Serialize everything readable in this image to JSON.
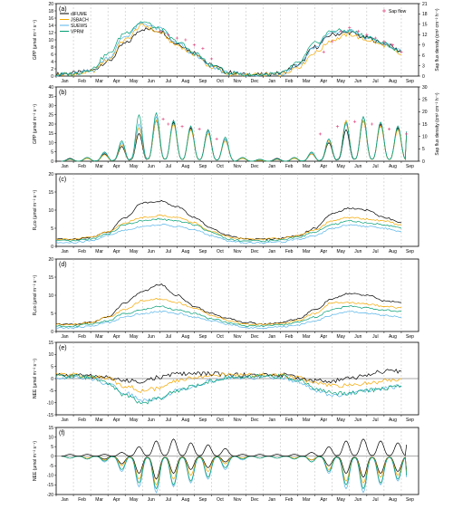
{
  "colors": {
    "diFUME": "#000000",
    "JSBACH": "#f5a800",
    "SUEWS": "#56b4e9",
    "VPRM": "#009e73",
    "sapflow": "#e0407a",
    "grid": "#b8b8b8",
    "zero": "#555555"
  },
  "legend": {
    "series": [
      "diFUME",
      "JSBACH",
      "SUEWS",
      "VPRM"
    ],
    "sapflow": "Sap flow"
  },
  "months": [
    "Jan",
    "Feb",
    "Mar",
    "Apr",
    "May",
    "Jun",
    "Jul",
    "Aug",
    "Sep",
    "Oct",
    "Nov",
    "Dec",
    "Jan",
    "Feb",
    "Mar",
    "Apr",
    "May",
    "Jun",
    "Jul",
    "Aug",
    "Sep"
  ],
  "chart_data": [
    {
      "panel": "(a)",
      "type": "line",
      "ylabel": "GPP (µmol m⁻² s⁻¹)",
      "ylim": [
        0,
        20
      ],
      "yticks": [
        0,
        2,
        4,
        6,
        8,
        10,
        12,
        14,
        16,
        18,
        20
      ],
      "y2label": "Sap flux density (cm³ cm⁻² h⁻¹)",
      "y2lim": [
        0,
        21
      ],
      "y2ticks": [
        0,
        3,
        6,
        9,
        12,
        15,
        18,
        21
      ],
      "x": [
        0,
        1,
        2,
        3,
        4,
        5,
        6,
        7,
        8,
        9,
        10,
        11,
        12,
        13,
        14,
        15,
        16,
        17,
        18,
        19,
        20
      ],
      "series": [
        {
          "name": "diFUME",
          "values": [
            0.5,
            0.8,
            1.5,
            4,
            9,
            13,
            12.5,
            9,
            6.5,
            3,
            1,
            0.4,
            0.4,
            0.8,
            3,
            8,
            11.5,
            12,
            10.5,
            9,
            7
          ]
        },
        {
          "name": "JSBACH",
          "values": [
            0.3,
            0.5,
            1.2,
            4.5,
            10,
            14,
            12,
            8.5,
            6,
            2.5,
            0.6,
            0.2,
            0.3,
            0.5,
            2.5,
            6.5,
            10,
            11.5,
            10,
            8.5,
            6
          ]
        },
        {
          "name": "SUEWS",
          "values": [
            0.4,
            0.6,
            1.4,
            5,
            11,
            14.5,
            13,
            9,
            6,
            2.5,
            0.8,
            0.3,
            0.3,
            0.6,
            3,
            8,
            12,
            12.5,
            10.5,
            9,
            7
          ]
        },
        {
          "name": "VPRM",
          "values": [
            0.4,
            0.6,
            1.8,
            6,
            12,
            15,
            13,
            9.5,
            6.5,
            3,
            1,
            0.3,
            0.4,
            0.7,
            3.5,
            9,
            12.5,
            12.5,
            11,
            9,
            6.5
          ]
        }
      ],
      "sapflow": {
        "x": [
          6,
          6.5,
          7,
          7.5,
          8,
          8.5,
          9,
          15.5,
          16,
          16.5,
          17,
          17.5,
          18,
          18.5,
          19,
          19.5,
          20
        ],
        "values": [
          13,
          12,
          11,
          10.5,
          9,
          8,
          5,
          7,
          10,
          13,
          14,
          13,
          12,
          11,
          10,
          9,
          7
        ]
      }
    },
    {
      "panel": "(b)",
      "type": "line",
      "ylabel": "GPP (µmol m⁻² s⁻¹)",
      "ylim": [
        0,
        40
      ],
      "yticks": [
        0,
        5,
        10,
        15,
        20,
        25,
        30,
        35,
        40
      ],
      "y2label": "Sap flux density (cm³ cm⁻² h⁻¹)",
      "y2lim": [
        0,
        30
      ],
      "y2ticks": [
        0,
        5,
        10,
        15,
        20,
        25,
        30
      ],
      "x": [
        0.3,
        1.3,
        2.3,
        3.3,
        4.3,
        5.3,
        6.3,
        7.3,
        8.3,
        9.3,
        10.3,
        11.3,
        12.3,
        13.3,
        14.3,
        15.3,
        16.3,
        17.3,
        18.3,
        19.3,
        20.3
      ],
      "series": [
        {
          "name": "diFUME",
          "values": [
            1.5,
            2,
            4,
            8,
            15,
            22,
            21,
            18,
            17,
            12,
            2,
            1,
            1.5,
            2,
            4,
            10,
            17,
            22,
            20,
            18,
            15
          ]
        },
        {
          "name": "JSBACH",
          "values": [
            1,
            1.5,
            3.5,
            9,
            18,
            22,
            20,
            17,
            15,
            11,
            1.5,
            0.5,
            1,
            1.5,
            4,
            11,
            22,
            22,
            19,
            17,
            14
          ]
        },
        {
          "name": "SUEWS",
          "values": [
            1.2,
            2,
            4.5,
            10,
            20,
            24,
            22,
            19,
            16,
            12,
            2,
            1,
            1.2,
            2,
            4.5,
            12,
            20,
            24,
            21,
            19,
            16
          ]
        },
        {
          "name": "VPRM",
          "values": [
            1.2,
            2,
            5,
            11,
            25,
            26,
            22,
            19,
            17,
            13,
            2,
            1,
            1.2,
            2,
            5,
            12,
            21,
            24,
            21,
            19,
            16
          ]
        }
      ],
      "sapflow": {
        "x": [
          6.2,
          6.5,
          7.3,
          8.3,
          9.3,
          15.3,
          16.3,
          17.3,
          18.3,
          19.3,
          20.3
        ],
        "values": [
          17,
          15,
          14,
          13,
          9,
          11,
          14,
          16,
          15,
          13,
          11
        ]
      }
    },
    {
      "panel": "(c)",
      "type": "line",
      "ylabel": "Rₑco (µmol m⁻² s⁻¹)",
      "ylim": [
        0,
        20
      ],
      "yticks": [
        0,
        5,
        10,
        15,
        20
      ],
      "x": [
        0,
        1,
        2,
        3,
        4,
        5,
        6,
        7,
        8,
        9,
        10,
        11,
        12,
        13,
        14,
        15,
        16,
        17,
        18,
        19,
        20
      ],
      "series": [
        {
          "name": "diFUME",
          "values": [
            2,
            2,
            2.5,
            4,
            8,
            12,
            12.5,
            11,
            8,
            5,
            3,
            2,
            2,
            2.2,
            3,
            5,
            9,
            10.5,
            10,
            8,
            6.5
          ]
        },
        {
          "name": "JSBACH",
          "values": [
            2,
            2,
            2.5,
            4,
            6.5,
            8,
            8.5,
            8,
            6.5,
            4,
            2.5,
            2,
            2,
            2.2,
            3,
            4.5,
            7,
            8,
            7.5,
            7,
            6
          ]
        },
        {
          "name": "SUEWS",
          "values": [
            1,
            1,
            1.5,
            3,
            4.5,
            5.5,
            6,
            5.5,
            4.5,
            3,
            1.5,
            1,
            1,
            1.2,
            2,
            3,
            5,
            6,
            5.5,
            5,
            4
          ]
        },
        {
          "name": "VPRM",
          "values": [
            1.5,
            1.5,
            2,
            3.5,
            6,
            7,
            7.5,
            7,
            6,
            4,
            2,
            1.5,
            1.5,
            1.7,
            2.5,
            4,
            6,
            7,
            6.5,
            6,
            5
          ]
        }
      ]
    },
    {
      "panel": "(d)",
      "type": "line",
      "ylabel": "Rₑco (µmol m⁻² s⁻¹)",
      "ylim": [
        0,
        20
      ],
      "yticks": [
        0,
        5,
        10,
        15,
        20
      ],
      "x": [
        0,
        1,
        2,
        3,
        4,
        5,
        6,
        7,
        8,
        9,
        10,
        11,
        12,
        13,
        14,
        15,
        16,
        17,
        18,
        19,
        20
      ],
      "series": [
        {
          "name": "diFUME",
          "values": [
            2,
            2,
            2.5,
            4,
            8,
            11,
            13,
            10,
            7,
            5,
            3.5,
            2.5,
            2,
            2.5,
            3.5,
            6,
            9,
            10.5,
            10,
            8.5,
            8
          ]
        },
        {
          "name": "JSBACH",
          "values": [
            2,
            2,
            2.5,
            4,
            6,
            8.5,
            9,
            8,
            6.5,
            4.5,
            3,
            2,
            2,
            2.2,
            3,
            5,
            8,
            8,
            7.5,
            7,
            6.5
          ]
        },
        {
          "name": "SUEWS",
          "values": [
            1,
            1,
            1.5,
            2.5,
            4,
            5,
            5.5,
            5,
            4,
            3,
            2,
            1,
            1,
            1.2,
            1.8,
            3,
            4.5,
            5.5,
            5,
            4.5,
            4
          ]
        },
        {
          "name": "VPRM",
          "values": [
            1.5,
            1.5,
            2,
            3,
            5,
            6,
            7,
            6,
            5,
            3.5,
            2.5,
            1.5,
            1.5,
            1.8,
            2.5,
            4,
            6,
            7,
            6.5,
            6,
            5.5
          ]
        }
      ]
    },
    {
      "panel": "(e)",
      "type": "line",
      "ylabel": "NEE (µmol m⁻² s⁻¹)",
      "ylim": [
        -15,
        15
      ],
      "yticks": [
        -15,
        -10,
        -5,
        0,
        5,
        10,
        15
      ],
      "x": [
        0,
        1,
        2,
        3,
        4,
        5,
        6,
        7,
        8,
        9,
        10,
        11,
        12,
        13,
        14,
        15,
        16,
        17,
        18,
        19,
        20
      ],
      "series": [
        {
          "name": "diFUME",
          "values": [
            1.5,
            1.5,
            1,
            0.5,
            -1,
            -1,
            0.5,
            2,
            2,
            2,
            1.5,
            1.5,
            1.5,
            1.5,
            0.5,
            -1,
            -1,
            0,
            1.5,
            3,
            3
          ]
        },
        {
          "name": "JSBACH",
          "values": [
            1.5,
            1.5,
            1,
            0,
            -3,
            -5,
            -4,
            -1,
            0.5,
            1.5,
            1.5,
            1.5,
            1.5,
            1.5,
            0.5,
            -2,
            -3,
            -3,
            -2,
            -1,
            0
          ]
        },
        {
          "name": "SUEWS",
          "values": [
            0.5,
            0.5,
            0,
            -2,
            -6,
            -9,
            -8,
            -5,
            -3,
            -1,
            0.5,
            0.5,
            0.5,
            0.5,
            -1,
            -5,
            -7,
            -6,
            -5,
            -4,
            -3
          ]
        },
        {
          "name": "VPRM",
          "values": [
            1,
            1,
            0.5,
            -2,
            -7,
            -10,
            -8,
            -5,
            -3,
            -1,
            0.5,
            0.5,
            1,
            1,
            -0.5,
            -4,
            -6,
            -6,
            -5,
            -4,
            -3
          ]
        }
      ]
    },
    {
      "panel": "(f)",
      "type": "line",
      "ylabel": "NEE (µmol m⁻² s⁻¹)",
      "ylim": [
        -20,
        15
      ],
      "yticks": [
        -20,
        -15,
        -10,
        -5,
        0,
        5,
        10,
        15
      ],
      "x": [
        0.3,
        1.3,
        2.3,
        3.3,
        4.3,
        5.3,
        6.3,
        7.3,
        8.3,
        9.3,
        10.3,
        11.3,
        12.3,
        13.3,
        14.3,
        15.3,
        16.3,
        17.3,
        18.3,
        19.3,
        20.3
      ],
      "series": [
        {
          "name": "diFUME",
          "values": [
            -1,
            -1,
            -1.5,
            -4,
            -9,
            -12,
            -9,
            -7,
            -6,
            -3,
            -1,
            -1,
            -1,
            -1,
            -2,
            -5,
            -9,
            -11,
            -9,
            -8,
            -7
          ]
        },
        {
          "name": "JSBACH",
          "values": [
            -1,
            -1,
            -2,
            -5,
            -12,
            -15,
            -12,
            -10,
            -8,
            -4,
            -1,
            -1,
            -1,
            -1,
            -2,
            -7,
            -13,
            -14,
            -11,
            -10,
            -8
          ]
        },
        {
          "name": "SUEWS",
          "values": [
            -1,
            -1.5,
            -3,
            -8,
            -16,
            -19,
            -16,
            -14,
            -12,
            -7,
            -2,
            -1,
            -1,
            -1.5,
            -3,
            -9,
            -17,
            -19,
            -15,
            -13,
            -11
          ]
        },
        {
          "name": "VPRM",
          "values": [
            -1,
            -1.5,
            -2.5,
            -7,
            -14,
            -17,
            -15,
            -13,
            -11,
            -6,
            -1.5,
            -1,
            -1,
            -1.5,
            -3,
            -8,
            -15,
            -17,
            -14,
            -12,
            -10
          ]
        }
      ],
      "peaks": [
        {
          "name": "diFUME",
          "values": [
            1,
            1,
            1,
            2,
            5,
            8,
            9,
            7,
            6,
            4,
            1,
            1,
            1,
            1,
            2,
            5,
            8,
            9,
            8,
            7,
            6
          ]
        }
      ]
    }
  ]
}
